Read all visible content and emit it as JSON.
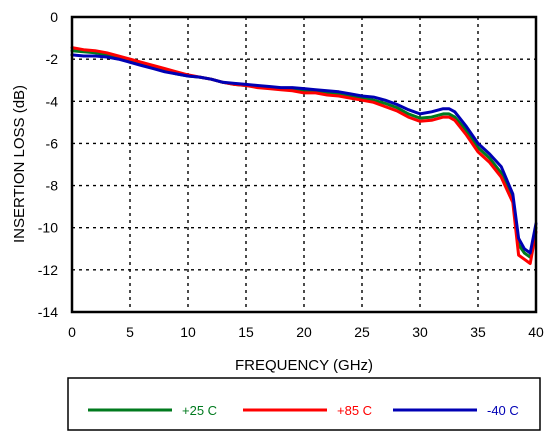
{
  "chart_data": {
    "type": "line",
    "xlabel": "FREQUENCY (GHz)",
    "ylabel": "INSERTION LOSS (dB)",
    "xlim": [
      0,
      40
    ],
    "ylim": [
      -14,
      0
    ],
    "xticks": [
      0,
      5,
      10,
      15,
      20,
      25,
      30,
      35,
      40
    ],
    "yticks": [
      0,
      -2,
      -4,
      -6,
      -8,
      -10,
      -12,
      -14
    ],
    "grid": "dotted",
    "legend_position": "bottom",
    "series": [
      {
        "name": "+25 C",
        "color": "#007a1e",
        "x": [
          0,
          1,
          2,
          3,
          4,
          5,
          6,
          7,
          8,
          9,
          10,
          11,
          12,
          13,
          14,
          15,
          16,
          17,
          18,
          19,
          20,
          21,
          22,
          23,
          24,
          25,
          26,
          27,
          28,
          29,
          30,
          31,
          32,
          32.5,
          33,
          34,
          35,
          36,
          37,
          38,
          38.5,
          39,
          39.5,
          40
        ],
        "y": [
          -1.6,
          -1.65,
          -1.7,
          -1.8,
          -1.95,
          -2.1,
          -2.25,
          -2.4,
          -2.55,
          -2.7,
          -2.8,
          -2.85,
          -2.95,
          -3.1,
          -3.2,
          -3.25,
          -3.3,
          -3.35,
          -3.4,
          -3.45,
          -3.5,
          -3.55,
          -3.6,
          -3.65,
          -3.75,
          -3.85,
          -3.95,
          -4.1,
          -4.3,
          -4.6,
          -4.8,
          -4.75,
          -4.6,
          -4.6,
          -4.75,
          -5.4,
          -6.2,
          -6.7,
          -7.4,
          -8.6,
          -10.8,
          -11.2,
          -11.4,
          -10.0
        ]
      },
      {
        "name": "+85 C",
        "color": "#ff0000",
        "x": [
          0,
          1,
          2,
          3,
          4,
          5,
          6,
          7,
          8,
          9,
          10,
          11,
          12,
          13,
          14,
          15,
          16,
          17,
          18,
          19,
          20,
          21,
          22,
          23,
          24,
          25,
          26,
          27,
          28,
          29,
          30,
          31,
          32,
          32.5,
          33,
          34,
          35,
          36,
          37,
          38,
          38.5,
          39,
          39.5,
          40
        ],
        "y": [
          -1.45,
          -1.55,
          -1.6,
          -1.7,
          -1.85,
          -2.0,
          -2.15,
          -2.3,
          -2.45,
          -2.6,
          -2.75,
          -2.85,
          -2.95,
          -3.1,
          -3.2,
          -3.25,
          -3.35,
          -3.4,
          -3.45,
          -3.5,
          -3.6,
          -3.6,
          -3.7,
          -3.75,
          -3.85,
          -3.95,
          -4.05,
          -4.25,
          -4.45,
          -4.75,
          -4.95,
          -4.9,
          -4.75,
          -4.75,
          -4.9,
          -5.6,
          -6.4,
          -6.9,
          -7.6,
          -8.8,
          -11.3,
          -11.5,
          -11.7,
          -10.2
        ]
      },
      {
        "name": "-40 C",
        "color": "#0000b4",
        "x": [
          0,
          1,
          2,
          3,
          4,
          5,
          6,
          7,
          8,
          9,
          10,
          11,
          12,
          13,
          14,
          15,
          16,
          17,
          18,
          19,
          20,
          21,
          22,
          23,
          24,
          25,
          26,
          27,
          28,
          29,
          30,
          31,
          32,
          32.5,
          33,
          34,
          35,
          36,
          37,
          38,
          38.5,
          39,
          39.5,
          40
        ],
        "y": [
          -1.8,
          -1.85,
          -1.85,
          -1.9,
          -2.0,
          -2.15,
          -2.3,
          -2.45,
          -2.6,
          -2.7,
          -2.8,
          -2.85,
          -2.95,
          -3.1,
          -3.15,
          -3.2,
          -3.25,
          -3.3,
          -3.35,
          -3.35,
          -3.4,
          -3.45,
          -3.5,
          -3.55,
          -3.65,
          -3.75,
          -3.8,
          -3.95,
          -4.15,
          -4.4,
          -4.6,
          -4.5,
          -4.35,
          -4.35,
          -4.5,
          -5.2,
          -6.0,
          -6.5,
          -7.1,
          -8.4,
          -10.5,
          -11.0,
          -11.2,
          -9.8
        ]
      }
    ]
  }
}
